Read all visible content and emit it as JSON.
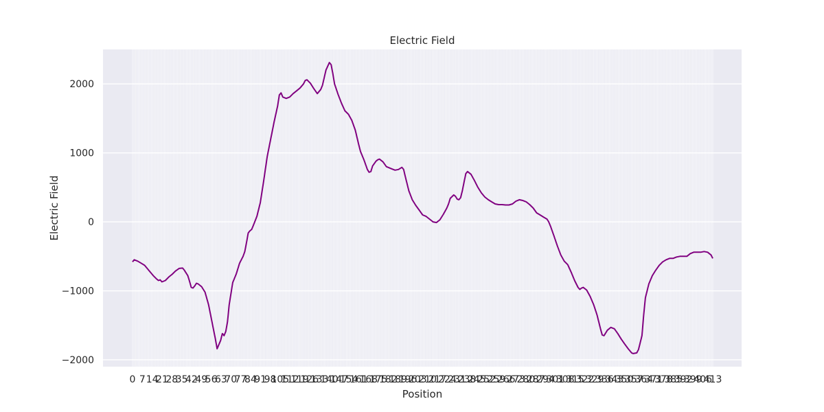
{
  "chart_data": {
    "type": "line",
    "title": "Electric Field",
    "xlabel": "Position",
    "ylabel": "Electric Field",
    "ylim": [
      -2100,
      2500
    ],
    "yticks": [
      -2000,
      -1000,
      0,
      1000,
      2000
    ],
    "ytick_labels": [
      "−2000",
      "−1000",
      "0",
      "1000",
      "2000"
    ],
    "grid": true,
    "xtick_count": 400,
    "xtick_labels_note": "overlapping, illegible",
    "series": [
      {
        "color": "#800080",
        "points": [
          [
            0,
            -580
          ],
          [
            1,
            -550
          ],
          [
            3,
            -570
          ],
          [
            5,
            -600
          ],
          [
            7,
            -630
          ],
          [
            9,
            -690
          ],
          [
            10,
            -720
          ],
          [
            12,
            -780
          ],
          [
            14,
            -830
          ],
          [
            15,
            -850
          ],
          [
            16,
            -840
          ],
          [
            17,
            -870
          ],
          [
            19,
            -850
          ],
          [
            21,
            -800
          ],
          [
            23,
            -760
          ],
          [
            25,
            -710
          ],
          [
            27,
            -675
          ],
          [
            29,
            -670
          ],
          [
            30,
            -700
          ],
          [
            32,
            -780
          ],
          [
            33,
            -860
          ],
          [
            34,
            -950
          ],
          [
            35,
            -960
          ],
          [
            36,
            -930
          ],
          [
            37,
            -890
          ],
          [
            38,
            -900
          ],
          [
            40,
            -940
          ],
          [
            42,
            -1020
          ],
          [
            44,
            -1200
          ],
          [
            46,
            -1450
          ],
          [
            48,
            -1700
          ],
          [
            49,
            -1840
          ],
          [
            51,
            -1720
          ],
          [
            52,
            -1620
          ],
          [
            53,
            -1650
          ],
          [
            54,
            -1590
          ],
          [
            55,
            -1450
          ],
          [
            56,
            -1200
          ],
          [
            58,
            -880
          ],
          [
            60,
            -760
          ],
          [
            62,
            -600
          ],
          [
            64,
            -500
          ],
          [
            65,
            -430
          ],
          [
            66,
            -300
          ],
          [
            67,
            -160
          ],
          [
            68,
            -130
          ],
          [
            69,
            -110
          ],
          [
            70,
            -50
          ],
          [
            72,
            80
          ],
          [
            74,
            280
          ],
          [
            76,
            600
          ],
          [
            78,
            950
          ],
          [
            80,
            1200
          ],
          [
            82,
            1450
          ],
          [
            84,
            1680
          ],
          [
            85,
            1840
          ],
          [
            86,
            1870
          ],
          [
            87,
            1810
          ],
          [
            89,
            1790
          ],
          [
            91,
            1810
          ],
          [
            93,
            1860
          ],
          [
            95,
            1900
          ],
          [
            97,
            1940
          ],
          [
            99,
            2000
          ],
          [
            100,
            2050
          ],
          [
            101,
            2060
          ],
          [
            103,
            2010
          ],
          [
            105,
            1930
          ],
          [
            107,
            1860
          ],
          [
            109,
            1920
          ],
          [
            110,
            1980
          ],
          [
            112,
            2200
          ],
          [
            114,
            2310
          ],
          [
            115,
            2280
          ],
          [
            116,
            2150
          ],
          [
            117,
            2000
          ],
          [
            119,
            1850
          ],
          [
            121,
            1720
          ],
          [
            123,
            1610
          ],
          [
            125,
            1560
          ],
          [
            127,
            1470
          ],
          [
            129,
            1330
          ],
          [
            131,
            1120
          ],
          [
            132,
            1020
          ],
          [
            134,
            900
          ],
          [
            136,
            760
          ],
          [
            137,
            720
          ],
          [
            138,
            730
          ],
          [
            139,
            810
          ],
          [
            141,
            880
          ],
          [
            142,
            900
          ],
          [
            143,
            910
          ],
          [
            145,
            870
          ],
          [
            147,
            800
          ],
          [
            150,
            770
          ],
          [
            152,
            750
          ],
          [
            154,
            760
          ],
          [
            156,
            790
          ],
          [
            157,
            760
          ],
          [
            158,
            650
          ],
          [
            160,
            450
          ],
          [
            162,
            320
          ],
          [
            164,
            240
          ],
          [
            166,
            170
          ],
          [
            168,
            100
          ],
          [
            170,
            80
          ],
          [
            172,
            40
          ],
          [
            174,
            0
          ],
          [
            176,
            -10
          ],
          [
            178,
            30
          ],
          [
            180,
            110
          ],
          [
            182,
            200
          ],
          [
            183,
            260
          ],
          [
            184,
            340
          ],
          [
            186,
            390
          ],
          [
            187,
            370
          ],
          [
            188,
            330
          ],
          [
            189,
            320
          ],
          [
            190,
            350
          ],
          [
            191,
            450
          ],
          [
            192,
            580
          ],
          [
            193,
            700
          ],
          [
            194,
            730
          ],
          [
            196,
            690
          ],
          [
            198,
            600
          ],
          [
            200,
            500
          ],
          [
            202,
            420
          ],
          [
            204,
            360
          ],
          [
            206,
            320
          ],
          [
            208,
            290
          ],
          [
            210,
            260
          ],
          [
            212,
            250
          ],
          [
            214,
            250
          ],
          [
            216,
            245
          ],
          [
            218,
            245
          ],
          [
            220,
            260
          ],
          [
            222,
            300
          ],
          [
            224,
            320
          ],
          [
            226,
            310
          ],
          [
            228,
            290
          ],
          [
            230,
            250
          ],
          [
            232,
            200
          ],
          [
            234,
            130
          ],
          [
            236,
            100
          ],
          [
            238,
            70
          ],
          [
            240,
            40
          ],
          [
            241,
            0
          ],
          [
            242,
            -60
          ],
          [
            244,
            -200
          ],
          [
            246,
            -350
          ],
          [
            248,
            -480
          ],
          [
            250,
            -570
          ],
          [
            252,
            -620
          ],
          [
            254,
            -730
          ],
          [
            256,
            -850
          ],
          [
            258,
            -950
          ],
          [
            259,
            -980
          ],
          [
            260,
            -960
          ],
          [
            261,
            -950
          ],
          [
            263,
            -990
          ],
          [
            265,
            -1080
          ],
          [
            267,
            -1200
          ],
          [
            269,
            -1350
          ],
          [
            271,
            -1550
          ],
          [
            272,
            -1640
          ],
          [
            273,
            -1650
          ],
          [
            275,
            -1570
          ],
          [
            277,
            -1530
          ],
          [
            279,
            -1550
          ],
          [
            281,
            -1620
          ],
          [
            283,
            -1700
          ],
          [
            285,
            -1770
          ],
          [
            287,
            -1840
          ],
          [
            289,
            -1900
          ],
          [
            290,
            -1910
          ],
          [
            292,
            -1900
          ],
          [
            293,
            -1850
          ],
          [
            295,
            -1650
          ],
          [
            296,
            -1350
          ],
          [
            297,
            -1100
          ],
          [
            299,
            -900
          ],
          [
            301,
            -780
          ],
          [
            303,
            -700
          ],
          [
            305,
            -630
          ],
          [
            307,
            -580
          ],
          [
            309,
            -550
          ],
          [
            311,
            -530
          ],
          [
            313,
            -530
          ],
          [
            315,
            -510
          ],
          [
            317,
            -500
          ],
          [
            319,
            -500
          ],
          [
            321,
            -500
          ],
          [
            323,
            -460
          ],
          [
            325,
            -440
          ],
          [
            327,
            -440
          ],
          [
            329,
            -440
          ],
          [
            331,
            -430
          ],
          [
            333,
            -440
          ],
          [
            335,
            -480
          ],
          [
            336,
            -530
          ]
        ]
      }
    ]
  }
}
